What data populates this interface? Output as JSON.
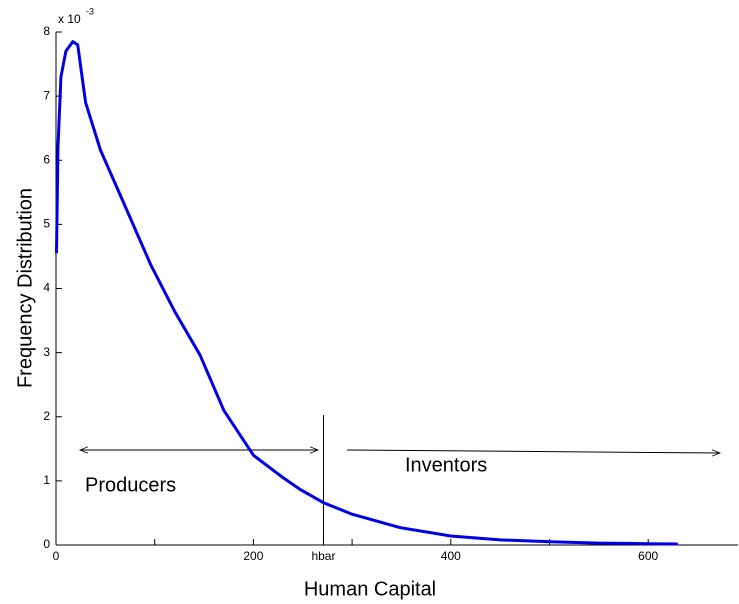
{
  "chart_data": {
    "type": "line",
    "xlabel": "Human Capital",
    "ylabel": "Frequency Distribution",
    "y_multiplier": {
      "base": "x 10",
      "exponent": "-3"
    },
    "x": [
      0.5,
      2,
      5,
      10,
      17,
      22,
      30,
      45,
      65,
      96,
      120,
      146,
      170,
      200,
      230,
      248,
      271,
      300,
      349,
      400,
      450,
      501,
      550,
      600,
      630
    ],
    "series": [
      {
        "color": "#0000e6",
        "values": [
          4.55,
          6.2,
          7.3,
          7.7,
          7.85,
          7.8,
          6.9,
          6.16,
          5.46,
          4.37,
          3.65,
          2.96,
          2.1,
          1.4,
          1.05,
          0.86,
          0.66,
          0.48,
          0.27,
          0.14,
          0.08,
          0.05,
          0.03,
          0.02,
          0.015
        ]
      }
    ],
    "xlim": [
      0,
      691
    ],
    "ylim": [
      0,
      8
    ],
    "xticks": [
      0,
      {
        "value": 100,
        "label": null
      },
      200,
      {
        "value": 271,
        "label": "hbar"
      },
      {
        "value": 300,
        "label": null
      },
      400,
      {
        "value": 500,
        "label": null
      },
      600
    ],
    "yticks": [
      0,
      1,
      2,
      3,
      4,
      5,
      6,
      7,
      8
    ],
    "annotations": {
      "left": "Producers",
      "right": "Inventors"
    }
  }
}
